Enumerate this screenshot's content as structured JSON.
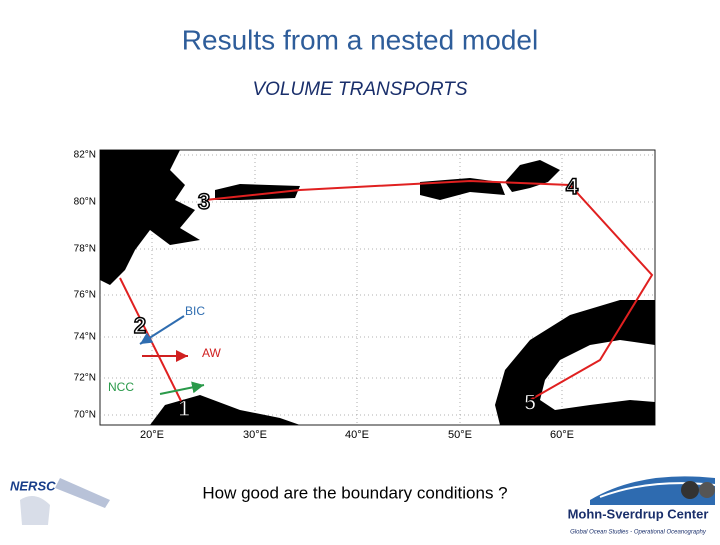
{
  "title": "Results from a nested model",
  "subtitle": "VOLUME TRANSPORTS",
  "map": {
    "lat_labels": [
      "82°N",
      "80°N",
      "78°N",
      "76°N",
      "74°N",
      "72°N",
      "70°N"
    ],
    "lon_labels": [
      "20°E",
      "30°E",
      "40°E",
      "50°E",
      "60°E"
    ],
    "sections": [
      "1",
      "2",
      "3",
      "4",
      "5"
    ],
    "flows": [
      "BIC",
      "AW",
      "NCC"
    ]
  },
  "caption": "How good are the boundary conditions ?",
  "logos": {
    "left": "NERSC",
    "right": "Mohn-Sverdrup Center",
    "right_sub": "Global Ocean Studies - Operational Oceanography"
  }
}
